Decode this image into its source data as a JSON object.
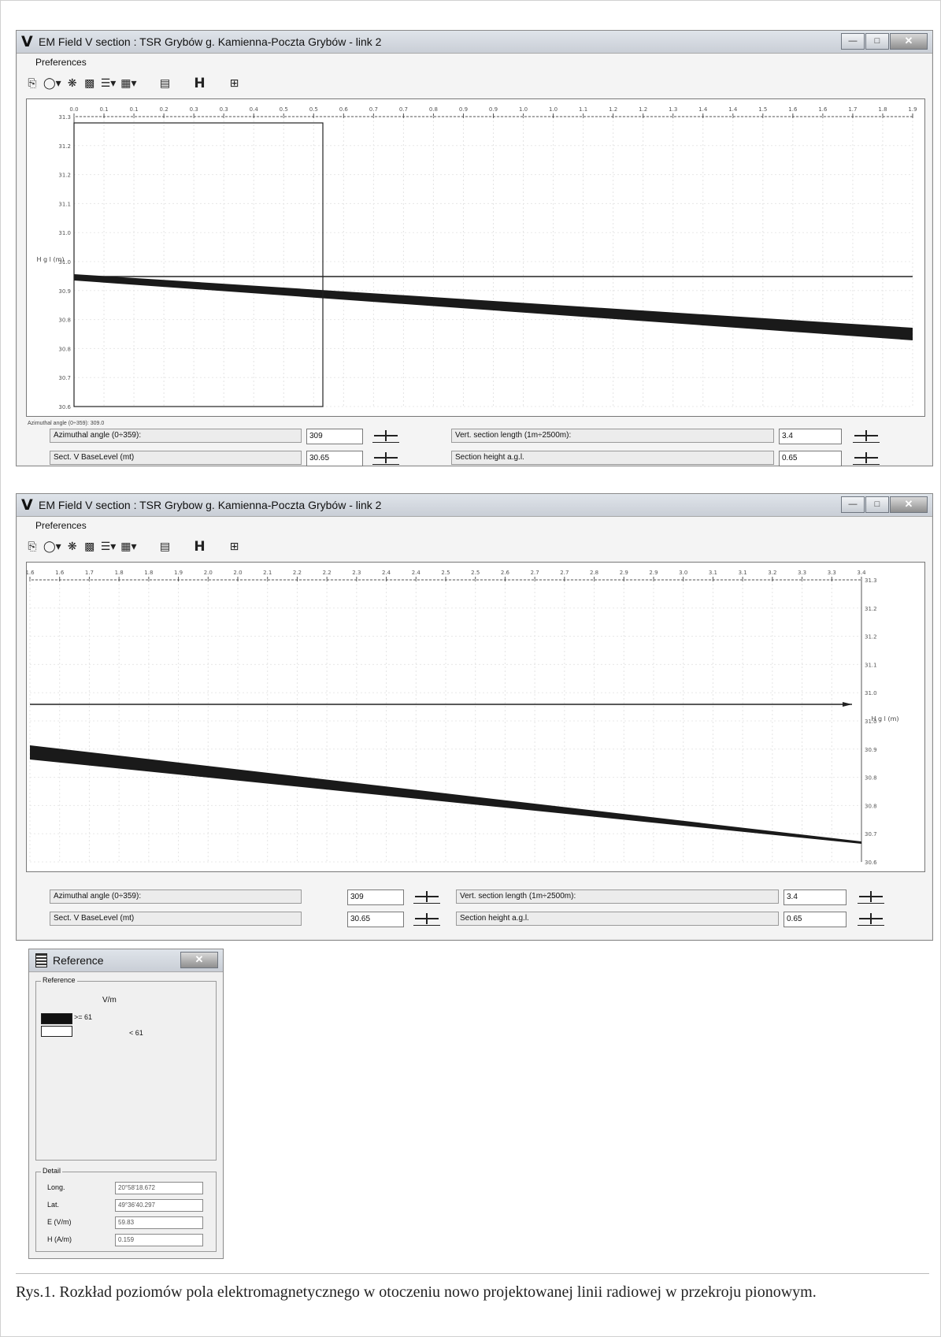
{
  "window_top": {
    "title": "EM Field V section : TSR Grybów g. Kamienna-Poczta Grybów - link 2",
    "menu": "Preferences",
    "x_ticks": [
      "0.0",
      "0.1",
      "0.1",
      "0.2",
      "0.3",
      "0.3",
      "0.4",
      "0.5",
      "0.5",
      "0.6",
      "0.7",
      "0.7",
      "0.8",
      "0.9",
      "0.9",
      "1.0",
      "1.0",
      "1.1",
      "1.2",
      "1.2",
      "1.3",
      "1.4",
      "1.4",
      "1.5",
      "1.6",
      "1.6",
      "1.7",
      "1.8",
      "1.9"
    ],
    "y_ticks": [
      "31.3",
      "31.2",
      "31.2",
      "31.1",
      "31.0",
      "31.0",
      "30.9",
      "30.8",
      "30.8",
      "30.7",
      "30.6"
    ],
    "y_axis_label": "H g l (m)",
    "az_footer": "Azimuthal angle (0÷359): 309.0",
    "params": {
      "az_label": "Azimuthal angle (0÷359):",
      "az_value": "309",
      "len_label": "Vert. section length (1m÷2500m):",
      "len_value": "3.4",
      "base_label": "Sect. V BaseLevel (mt)",
      "base_value": "30.65",
      "height_label": "Section height a.g.l.",
      "height_value": "0.65"
    },
    "icon_names": [
      "print-icon",
      "globe-icon",
      "settings-icon",
      "chart-icon",
      "list-icon",
      "map-icon",
      "report-icon",
      "h-icon",
      "export-icon"
    ]
  },
  "window_bottom": {
    "title": "EM Field V section : TSR Grybow g. Kamienna-Poczta Grybów - link 2",
    "menu": "Preferences",
    "x_ticks": [
      "1.6",
      "1.6",
      "1.7",
      "1.8",
      "1.8",
      "1.9",
      "2.0",
      "2.0",
      "2.1",
      "2.2",
      "2.2",
      "2.3",
      "2.4",
      "2.4",
      "2.5",
      "2.5",
      "2.6",
      "2.7",
      "2.7",
      "2.8",
      "2.9",
      "2.9",
      "3.0",
      "3.1",
      "3.1",
      "3.2",
      "3.3",
      "3.3",
      "3.4"
    ],
    "y_ticks": [
      "31.3",
      "31.2",
      "31.2",
      "31.1",
      "31.0",
      "31.0",
      "30.9",
      "30.8",
      "30.8",
      "30.7",
      "30.6"
    ],
    "y_axis_label": "H g l (m)",
    "params": {
      "az_label": "Azimuthal angle (0÷359):",
      "az_value": "309",
      "len_label": "Vert. section length (1m÷2500m):",
      "len_value": "3.4",
      "base_label": "Sect. V BaseLevel (mt)",
      "base_value": "30.65",
      "height_label": "Section height a.g.l.",
      "height_value": "0.65"
    }
  },
  "reference": {
    "title": "Reference",
    "group_label": "Reference",
    "unit": "V/m",
    "legend": [
      {
        "label": ">= 61",
        "color": "#111111"
      },
      {
        "label": "< 61",
        "color": "#ffffff"
      }
    ],
    "detail_label": "Detail",
    "details": [
      {
        "label": "Long.",
        "value": "20°58'18.672"
      },
      {
        "label": "Lat.",
        "value": "49°36'40.297"
      },
      {
        "label": "E (V/m)",
        "value": "59.83"
      },
      {
        "label": "H (A/m)",
        "value": "0.159"
      }
    ]
  },
  "caption": "Rys.1. Rozkład poziomów pola elektromagnetycznego w otoczeniu nowo projektowanej linii radiowej w przekroju pionowym.",
  "colors": {
    "field_band": "#1a1a1a",
    "titlebar": "#d3d8df"
  }
}
